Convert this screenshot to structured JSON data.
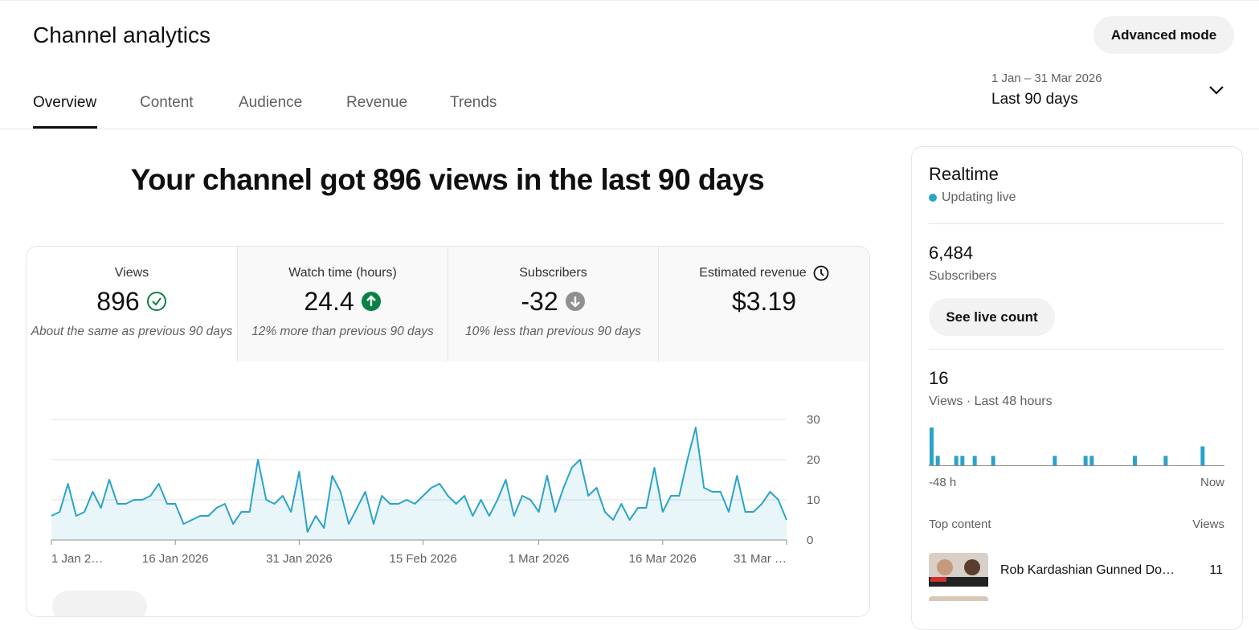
{
  "header": {
    "title": "Channel analytics",
    "advanced_mode": "Advanced mode",
    "tabs": [
      "Overview",
      "Content",
      "Audience",
      "Revenue",
      "Trends"
    ],
    "date_range": "1 Jan – 31 Mar 2026",
    "period": "Last 90 days"
  },
  "headline": "Your channel got 896 views in the last 90 days",
  "metrics": [
    {
      "label": "Views",
      "value": "896",
      "note": "About the same as previous 90 days"
    },
    {
      "label": "Watch time (hours)",
      "value": "24.4",
      "note": "12% more than previous 90 days"
    },
    {
      "label": "Subscribers",
      "value": "-32",
      "note": "10% less than previous 90 days"
    },
    {
      "label": "Estimated revenue",
      "value": "$3.19"
    }
  ],
  "chart_data": {
    "type": "line",
    "color": "#2ba3c9",
    "values": [
      6,
      7,
      14,
      6,
      7,
      12,
      8,
      15,
      9,
      9,
      10,
      10,
      11,
      14,
      9,
      9,
      4,
      5,
      6,
      6,
      8,
      9,
      4,
      7,
      7,
      20,
      10,
      9,
      11,
      7,
      17,
      2,
      6,
      3,
      16,
      12,
      4,
      8,
      12,
      4,
      11,
      9,
      9,
      10,
      9,
      11,
      13,
      14,
      11,
      9,
      11,
      6,
      10,
      6,
      10,
      15,
      6,
      11,
      10,
      7,
      16,
      7,
      13,
      18,
      20,
      11,
      13,
      7,
      5,
      9,
      5,
      8,
      8,
      18,
      7,
      11,
      11,
      20,
      28,
      13,
      12,
      12,
      7,
      16,
      7,
      7,
      9,
      12,
      10,
      5
    ],
    "xlim": [
      0,
      89
    ],
    "xticks": [
      {
        "value": 0,
        "label": "1 Jan 2…"
      },
      {
        "value": 15,
        "label": "16 Jan 2026"
      },
      {
        "value": 30,
        "label": "31 Jan 2026"
      },
      {
        "value": 45,
        "label": "15 Feb 2026"
      },
      {
        "value": 59,
        "label": "1 Mar 2026"
      },
      {
        "value": 74,
        "label": "16 Mar 2026"
      },
      {
        "value": 89,
        "label": "31 Mar …"
      }
    ],
    "ylim": [
      0,
      30
    ],
    "yticks": [
      0,
      10,
      20,
      30
    ],
    "grid": true
  },
  "realtime": {
    "title": "Realtime",
    "status": "Updating live",
    "subscribers": "6,484",
    "subscribers_label": "Subscribers",
    "live_button": "See live count",
    "views": "16",
    "views_label": "Views · Last 48 hours",
    "chart_data": {
      "type": "bar",
      "color": "#2ba3c9",
      "values": [
        4,
        1,
        0,
        0,
        1,
        1,
        0,
        1,
        0,
        0,
        1,
        0,
        0,
        0,
        0,
        0,
        0,
        0,
        0,
        0,
        1,
        0,
        0,
        0,
        0,
        1,
        1,
        0,
        0,
        0,
        0,
        0,
        0,
        1,
        0,
        0,
        0,
        0,
        1,
        0,
        0,
        0,
        0,
        0,
        2,
        0,
        0,
        0
      ],
      "x_labels": [
        "-48 h",
        "Now"
      ]
    },
    "top_content_label": "Top content",
    "views_column": "Views",
    "items": [
      {
        "title": "Rob Kardashian Gunned Do…",
        "views": "11"
      }
    ]
  }
}
